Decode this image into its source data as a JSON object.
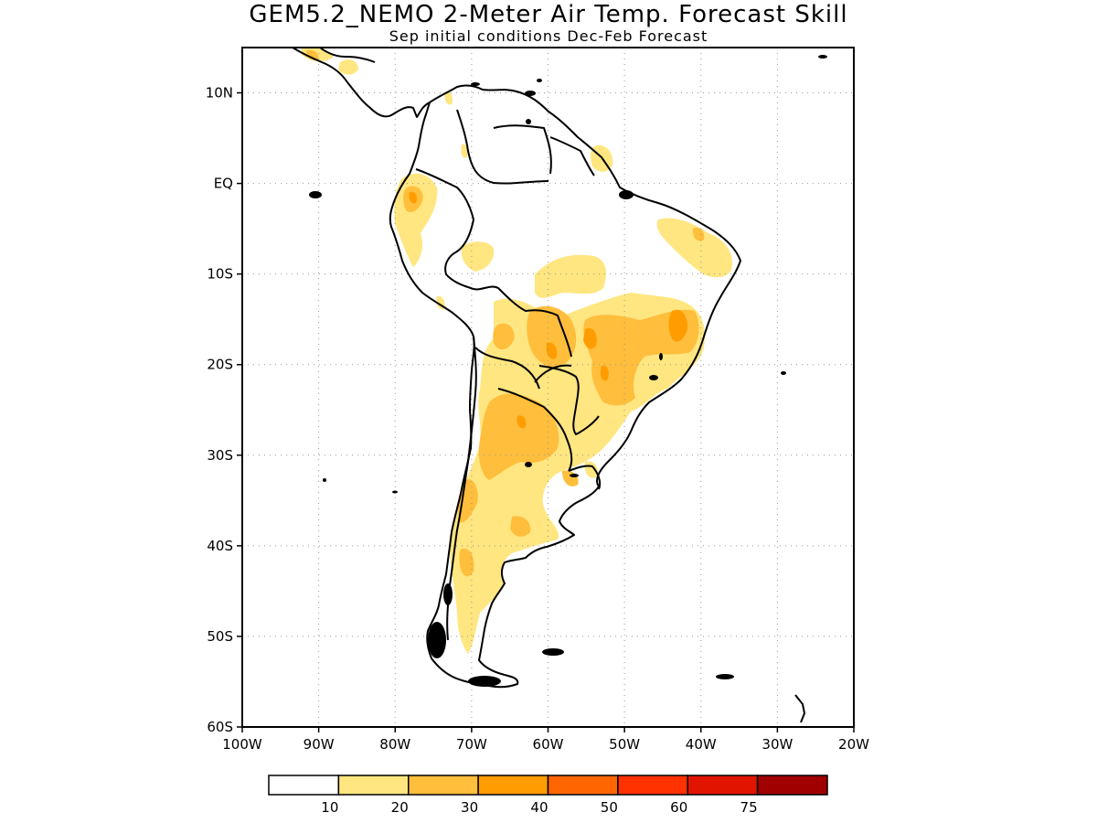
{
  "title": "GEM5.2_NEMO 2-Meter Air Temp. Forecast Skill",
  "subtitle": "Sep initial conditions  Dec-Feb Forecast",
  "map": {
    "lon_range": [
      -100,
      -20
    ],
    "lat_range": [
      -60,
      15
    ],
    "lat_ticks": [
      {
        "value": 10,
        "label": "10N"
      },
      {
        "value": 0,
        "label": "EQ"
      },
      {
        "value": -10,
        "label": "10S"
      },
      {
        "value": -20,
        "label": "20S"
      },
      {
        "value": -30,
        "label": "30S"
      },
      {
        "value": -40,
        "label": "40S"
      },
      {
        "value": -50,
        "label": "50S"
      },
      {
        "value": -60,
        "label": "60S"
      }
    ],
    "lon_ticks": [
      {
        "value": -100,
        "label": "100W"
      },
      {
        "value": -90,
        "label": "90W"
      },
      {
        "value": -80,
        "label": "80W"
      },
      {
        "value": -70,
        "label": "70W"
      },
      {
        "value": -60,
        "label": "60W"
      },
      {
        "value": -50,
        "label": "50W"
      },
      {
        "value": -40,
        "label": "40W"
      },
      {
        "value": -30,
        "label": "30W"
      },
      {
        "value": -20,
        "label": "20W"
      }
    ],
    "grid": "dotted"
  },
  "colorbar": {
    "colors": [
      "#ffffff",
      "#ffe680",
      "#ffbe3c",
      "#ff9c00",
      "#ff6600",
      "#ff3200",
      "#e11400",
      "#a00000"
    ],
    "labels": [
      "10",
      "20",
      "30",
      "40",
      "50",
      "60",
      "75"
    ]
  }
}
